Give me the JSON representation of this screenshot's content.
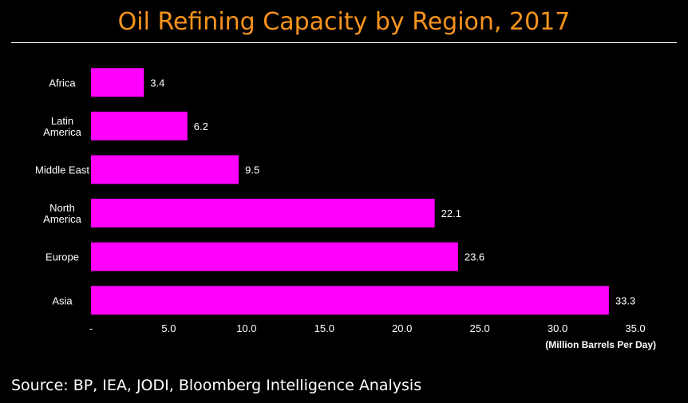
{
  "title": "Oil Refining Capacity by Region, 2017",
  "source": "Source: BP, IEA, JODI, Bloomberg Intelligence Analysis",
  "colors": {
    "bar": "#ff00ff",
    "title": "#f7941d",
    "text": "#ffffff",
    "background": "#000000"
  },
  "chart_data": {
    "type": "bar",
    "orientation": "horizontal",
    "categories": [
      [
        "Africa"
      ],
      [
        "Latin",
        "America"
      ],
      [
        "Middle East"
      ],
      [
        "North",
        "America"
      ],
      [
        "Europe"
      ],
      [
        "Asia"
      ]
    ],
    "values": [
      3.4,
      6.2,
      9.5,
      22.1,
      23.6,
      33.3
    ],
    "value_labels": [
      "3.4",
      "6.2",
      "9.5",
      "22.1",
      "23.6",
      "33.3"
    ],
    "title": "Oil Refining Capacity by Region, 2017",
    "xlabel": "(Million Barrels Per Day)",
    "ylabel": "",
    "xlim": [
      0,
      35
    ],
    "xticks": [
      0,
      5,
      10,
      15,
      20,
      25,
      30,
      35
    ],
    "xtick_labels": [
      "-",
      "5.0",
      "10.0",
      "15.0",
      "20.0",
      "25.0",
      "30.0",
      "35.0"
    ],
    "grid": false,
    "legend": "none"
  }
}
